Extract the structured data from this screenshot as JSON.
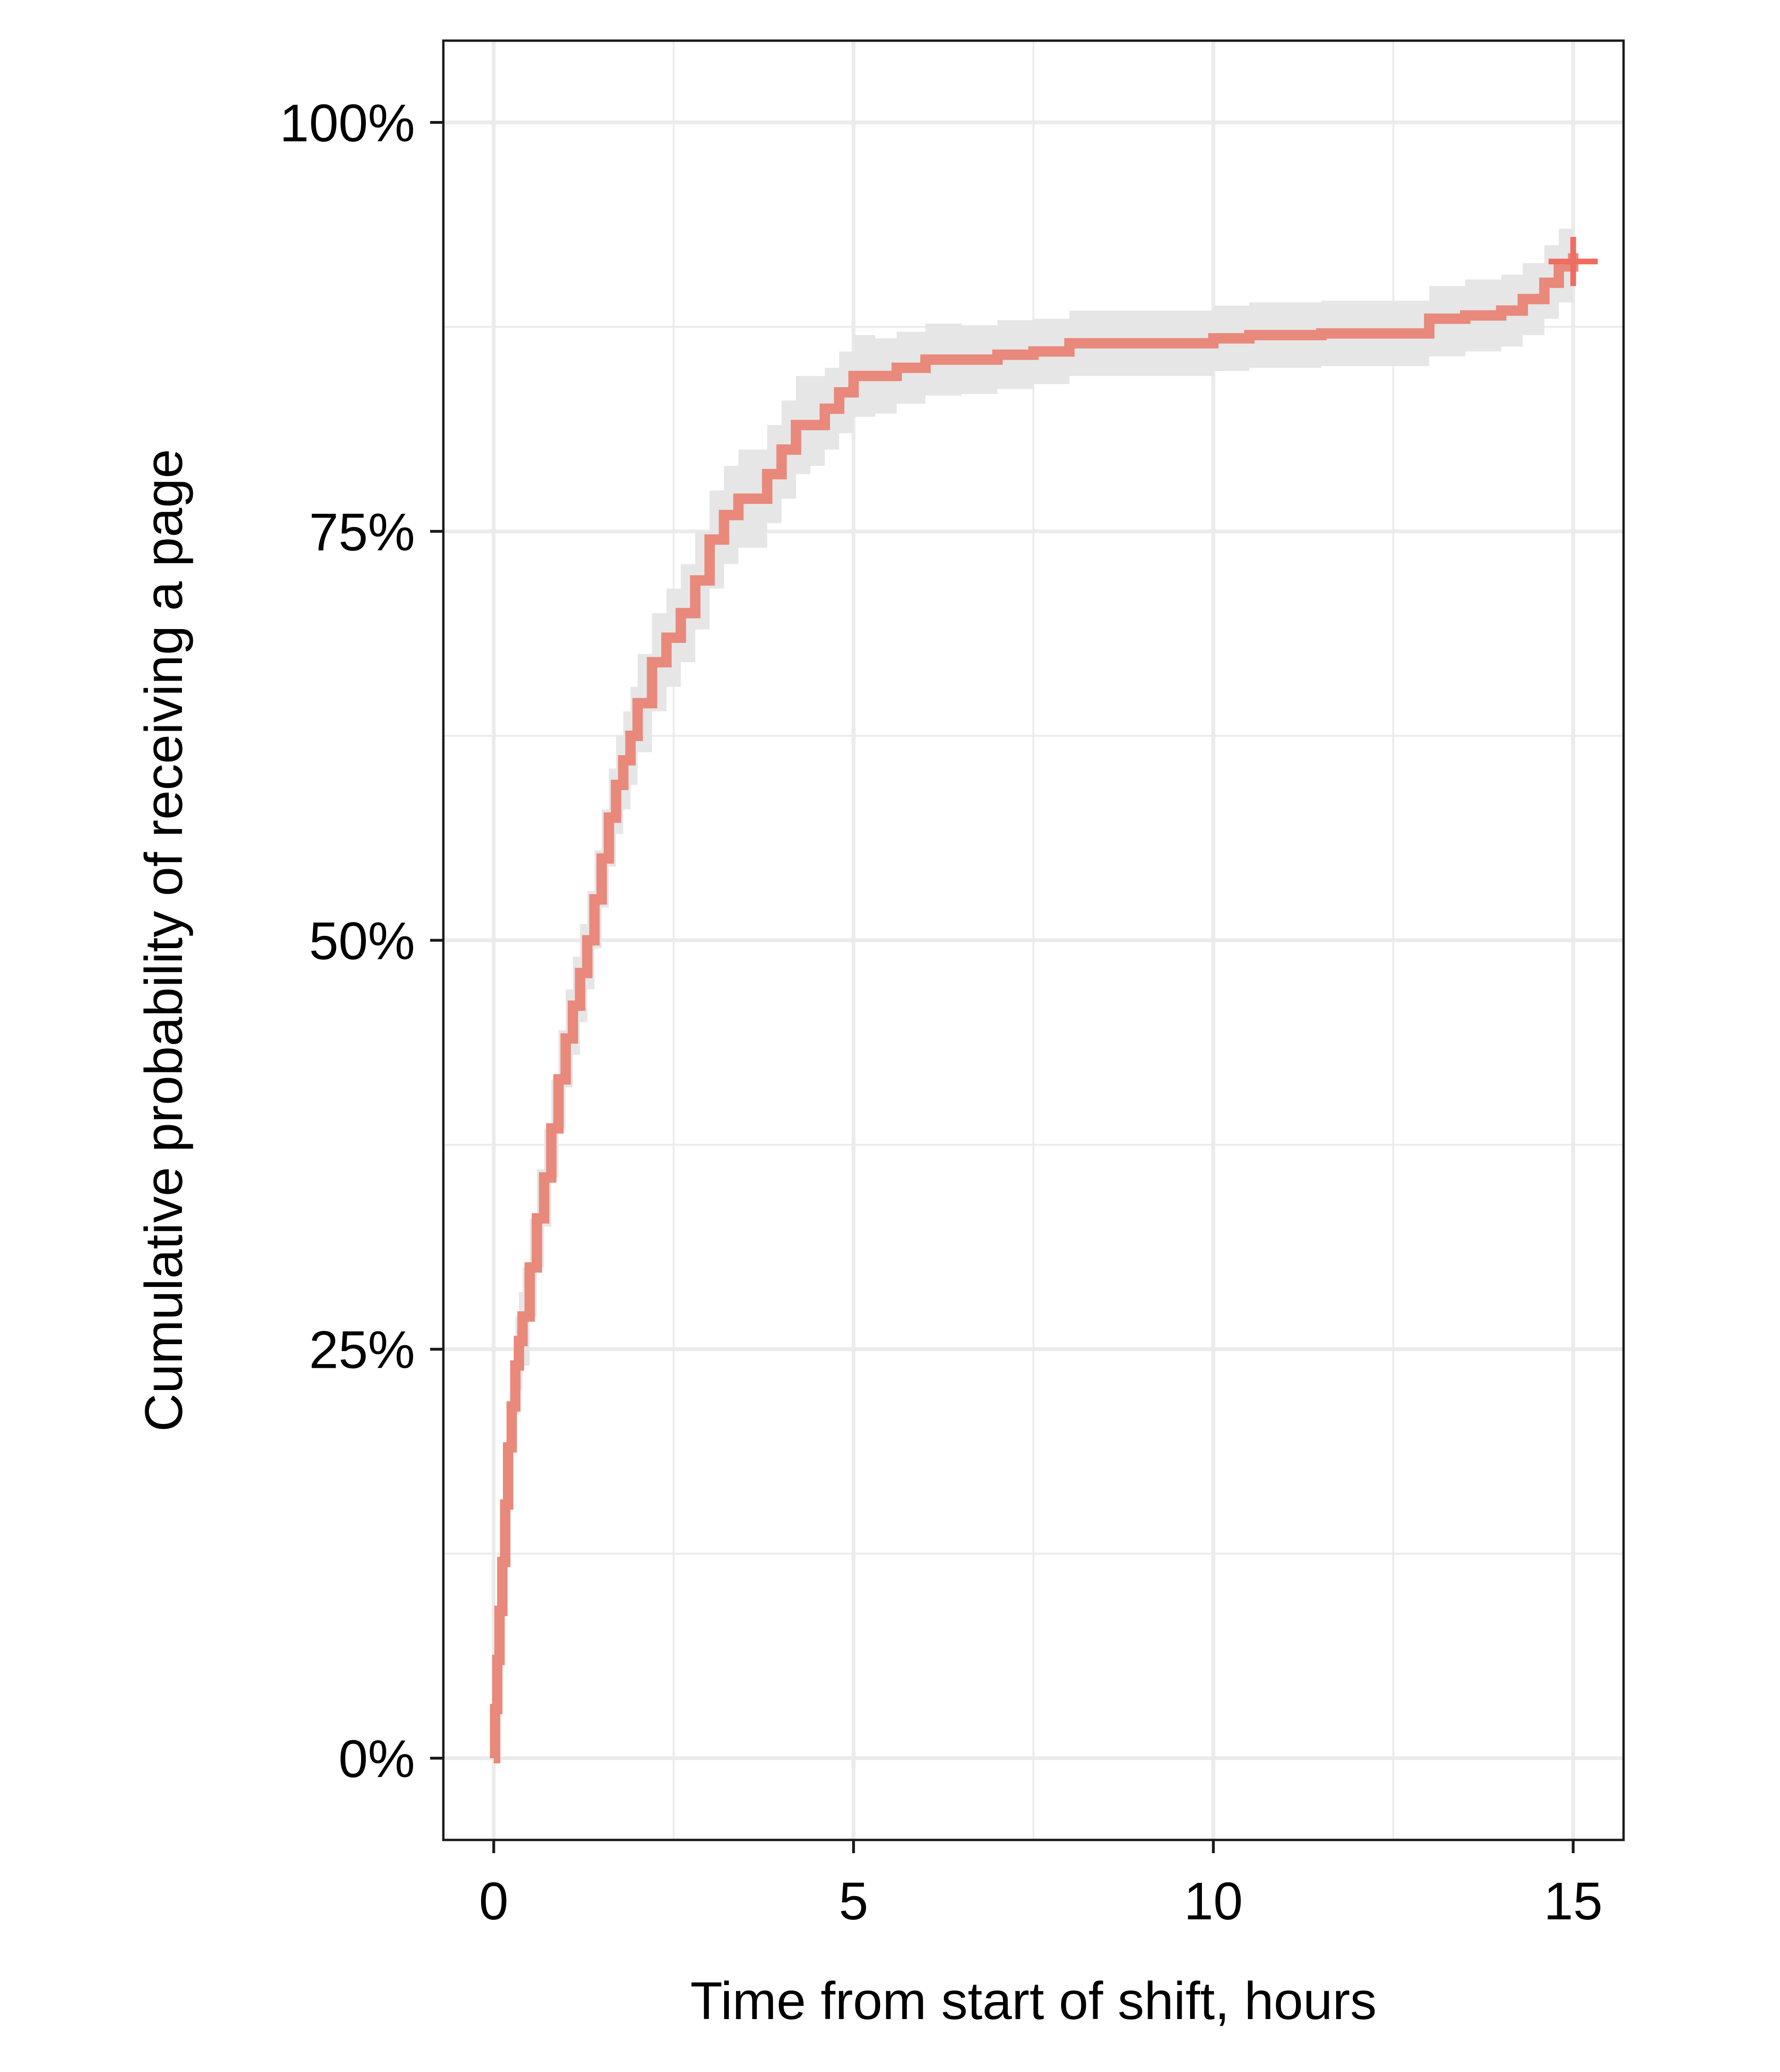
{
  "chart_data": {
    "type": "line",
    "step": true,
    "xlabel": "Time from start of shift, hours",
    "ylabel": "Cumulative probability of receiving a page",
    "xlim": [
      -0.7,
      15.7
    ],
    "ylim": [
      -0.05,
      1.05
    ],
    "x_ticks": [
      0,
      5,
      10,
      15
    ],
    "x_tick_labels": [
      "0",
      "5",
      "10",
      "15"
    ],
    "y_ticks": [
      0,
      0.25,
      0.5,
      0.75,
      1.0
    ],
    "y_tick_labels": [
      "0%",
      "25%",
      "50%",
      "75%",
      "100%"
    ],
    "grid": true,
    "legend": "none",
    "colors": {
      "line": "#E8897B",
      "censor_mark": "#EE6C60",
      "ribbon": "#E6E6E6",
      "grid": "#EBEBEB",
      "panel_border": "#1A1A1A"
    },
    "series": [
      {
        "x": [
          0,
          0.02,
          0.05,
          0.08,
          0.12,
          0.16,
          0.2,
          0.25,
          0.3,
          0.35,
          0.4,
          0.5,
          0.6,
          0.7,
          0.8,
          0.9,
          1.0,
          1.1,
          1.2,
          1.3,
          1.4,
          1.5,
          1.6,
          1.7,
          1.8,
          1.9,
          2.0,
          2.2,
          2.4,
          2.6,
          2.8,
          3.0,
          3.2,
          3.4,
          3.6,
          3.8,
          4.0,
          4.2,
          4.4,
          4.6,
          4.8,
          5.0,
          5.3,
          5.6,
          6.0,
          6.5,
          7.0,
          7.5,
          8.0,
          9.0,
          10.0,
          10.5,
          11.5,
          12.5,
          13.0,
          13.5,
          14.0,
          14.3,
          14.6,
          14.8,
          15.0
        ],
        "y": [
          0,
          0.03,
          0.06,
          0.09,
          0.12,
          0.155,
          0.19,
          0.215,
          0.24,
          0.255,
          0.27,
          0.3,
          0.33,
          0.355,
          0.385,
          0.415,
          0.44,
          0.46,
          0.48,
          0.5,
          0.525,
          0.55,
          0.575,
          0.595,
          0.61,
          0.625,
          0.645,
          0.67,
          0.685,
          0.7,
          0.72,
          0.745,
          0.76,
          0.77,
          0.77,
          0.785,
          0.8,
          0.815,
          0.815,
          0.825,
          0.835,
          0.845,
          0.845,
          0.85,
          0.855,
          0.855,
          0.858,
          0.86,
          0.865,
          0.865,
          0.868,
          0.87,
          0.871,
          0.871,
          0.88,
          0.882,
          0.885,
          0.892,
          0.902,
          0.912,
          0.92
        ],
        "lower": [
          0,
          0.015,
          0.04,
          0.07,
          0.1,
          0.13,
          0.165,
          0.19,
          0.21,
          0.225,
          0.24,
          0.27,
          0.3,
          0.325,
          0.355,
          0.385,
          0.41,
          0.43,
          0.45,
          0.47,
          0.495,
          0.52,
          0.545,
          0.565,
          0.58,
          0.595,
          0.615,
          0.64,
          0.655,
          0.67,
          0.69,
          0.715,
          0.73,
          0.74,
          0.74,
          0.755,
          0.77,
          0.785,
          0.79,
          0.8,
          0.81,
          0.82,
          0.822,
          0.828,
          0.833,
          0.834,
          0.837,
          0.84,
          0.845,
          0.845,
          0.848,
          0.85,
          0.851,
          0.851,
          0.857,
          0.86,
          0.863,
          0.87,
          0.88,
          0.89,
          0.895
        ],
        "upper": [
          0,
          0.045,
          0.08,
          0.11,
          0.14,
          0.18,
          0.215,
          0.24,
          0.27,
          0.285,
          0.3,
          0.33,
          0.36,
          0.385,
          0.415,
          0.445,
          0.47,
          0.49,
          0.51,
          0.53,
          0.555,
          0.58,
          0.605,
          0.625,
          0.64,
          0.655,
          0.675,
          0.7,
          0.715,
          0.73,
          0.75,
          0.775,
          0.79,
          0.8,
          0.8,
          0.815,
          0.83,
          0.845,
          0.845,
          0.85,
          0.86,
          0.87,
          0.868,
          0.872,
          0.877,
          0.876,
          0.879,
          0.88,
          0.885,
          0.885,
          0.888,
          0.89,
          0.891,
          0.891,
          0.9,
          0.904,
          0.907,
          0.914,
          0.925,
          0.935,
          0.94
        ]
      }
    ],
    "censor_marks": [
      {
        "x": 15.0,
        "y": 0.915
      }
    ]
  }
}
